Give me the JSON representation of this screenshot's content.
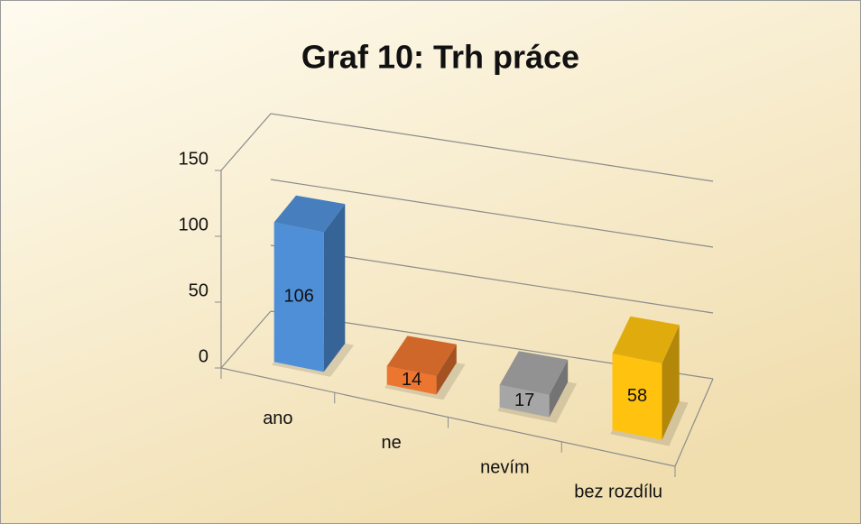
{
  "chart_data": {
    "type": "bar3d",
    "title": "Graf 10: Trh práce",
    "categories": [
      "ano",
      "ne",
      "nevím",
      "bez rozdílu"
    ],
    "values": [
      106,
      14,
      17,
      58
    ],
    "colors": [
      "#4f8fd8",
      "#ec7530",
      "#a6a6a6",
      "#ffc20e"
    ],
    "ylim": [
      0,
      150
    ],
    "yticks": [
      0,
      50,
      100,
      150
    ],
    "grid": true
  }
}
